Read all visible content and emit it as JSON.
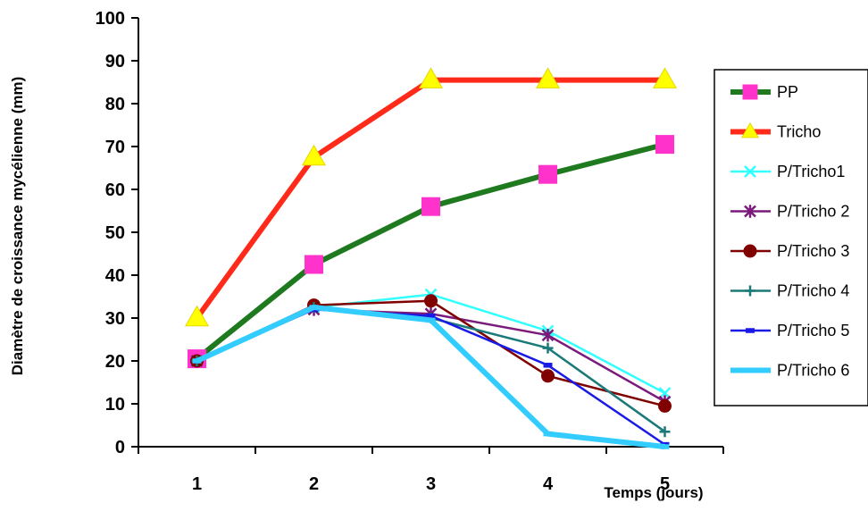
{
  "chart_data": {
    "type": "line",
    "xlabel": "Temps (jours)",
    "ylabel": "Diamètre de croissance mycélienne (mm)",
    "x": [
      1,
      2,
      3,
      4,
      5
    ],
    "ylim": [
      0,
      100
    ],
    "yticks": [
      0,
      10,
      20,
      30,
      40,
      50,
      60,
      70,
      80,
      90,
      100
    ],
    "xticks": [
      "1",
      "2",
      "3",
      "4",
      "5"
    ],
    "grid": false,
    "legend_position": "right",
    "series": [
      {
        "name": "PP",
        "color": "#1f7a1f",
        "marker": "square",
        "marker_color": "#ff33cc",
        "values": [
          20.5,
          42.5,
          56,
          63.5,
          70.5
        ]
      },
      {
        "name": "Tricho",
        "color": "#ff2a1a",
        "marker": "triangle",
        "marker_color": "#ffff00",
        "values": [
          30,
          67.5,
          85.5,
          85.5,
          85.5
        ]
      },
      {
        "name": "P/Tricho1",
        "color": "#33ffff",
        "marker": "x",
        "marker_color": "#33ffff",
        "values": [
          20,
          32.5,
          35.5,
          27,
          12.5
        ]
      },
      {
        "name": "P/Tricho 2",
        "color": "#7a1a7a",
        "marker": "asterisk",
        "marker_color": "#7a1a7a",
        "values": [
          20,
          32,
          31,
          26,
          10.5
        ]
      },
      {
        "name": "P/Tricho 3",
        "color": "#800000",
        "marker": "circle",
        "marker_color": "#800000",
        "values": [
          20,
          33,
          34,
          16.5,
          9.5
        ]
      },
      {
        "name": "P/Tricho 4",
        "color": "#1a7a7a",
        "marker": "plus",
        "marker_color": "#1a7a7a",
        "values": [
          20,
          32.5,
          30,
          23,
          3.5
        ]
      },
      {
        "name": "P/Tricho 5",
        "color": "#1a1ae6",
        "marker": "dash",
        "marker_color": "#1a1ae6",
        "values": [
          20,
          32,
          30.5,
          19,
          0.5
        ]
      },
      {
        "name": "P/Tricho 6",
        "color": "#33ccff",
        "marker": "dash",
        "marker_color": "#33ccff",
        "values": [
          20,
          32.5,
          29.5,
          3,
          0
        ]
      }
    ]
  }
}
